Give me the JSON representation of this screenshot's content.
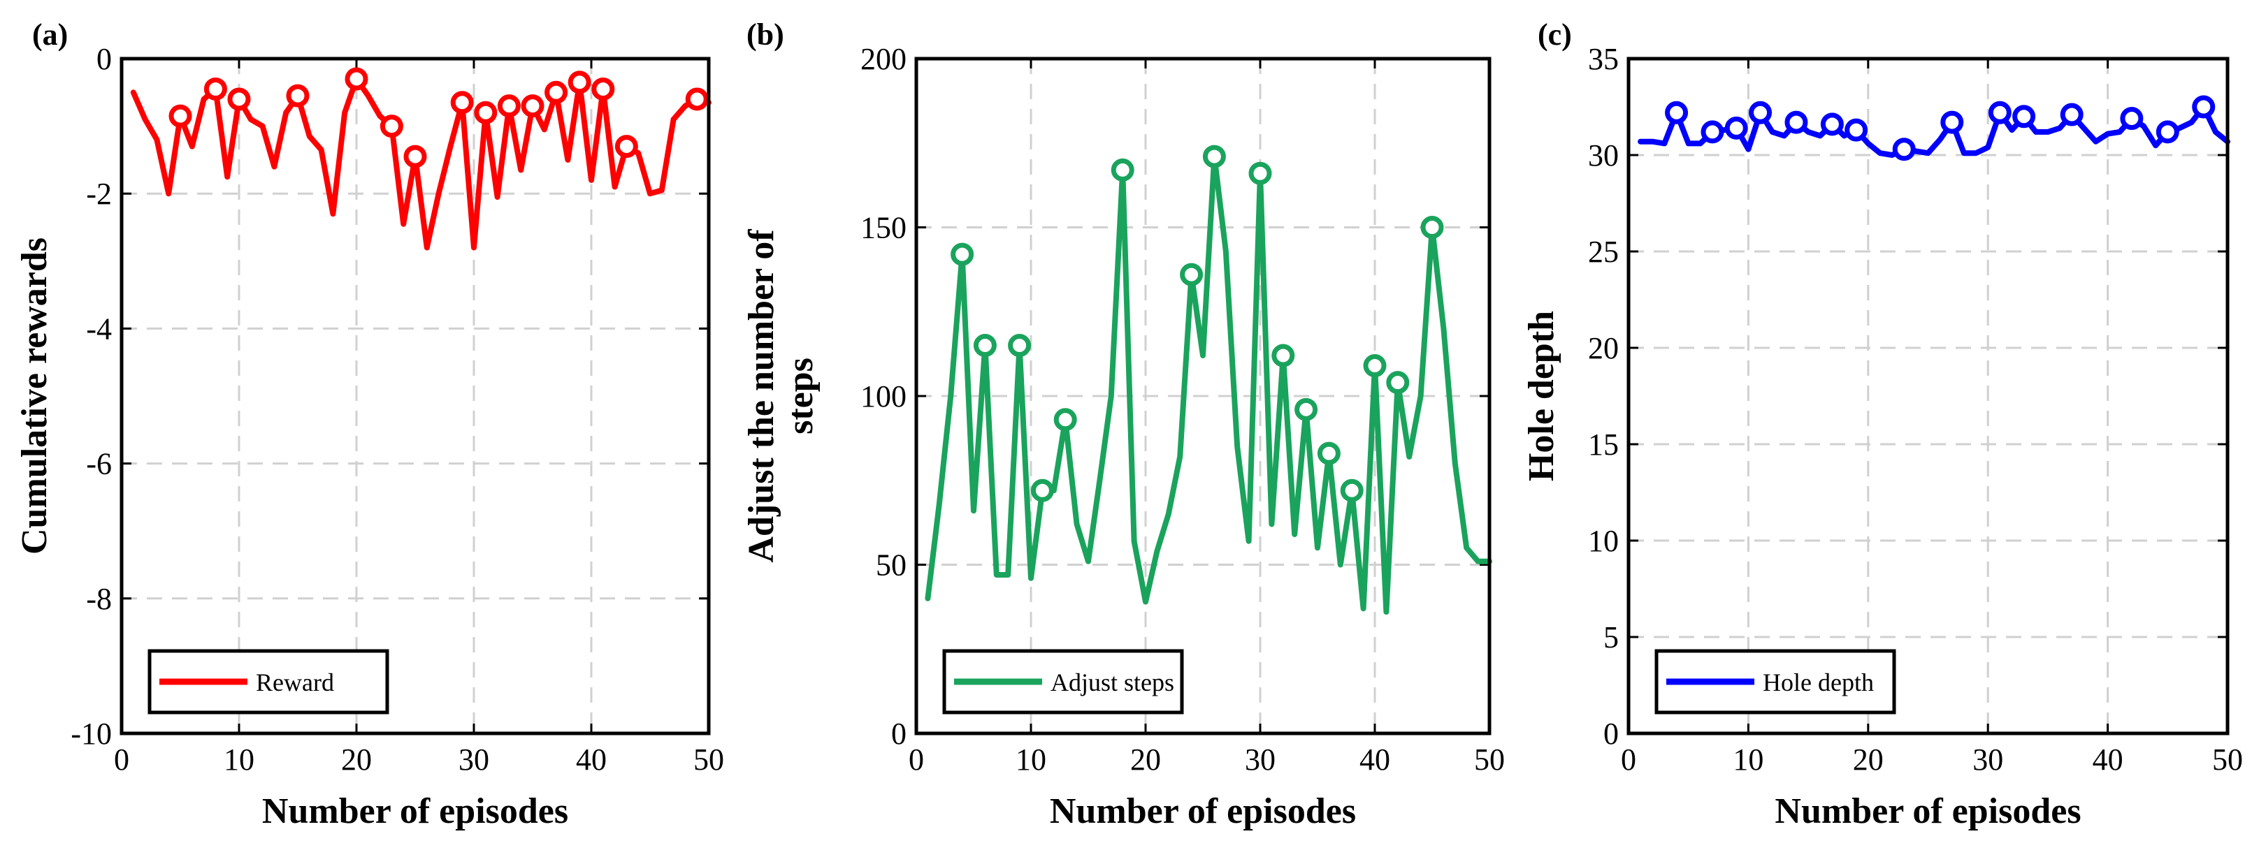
{
  "chart_data": [
    {
      "type": "line",
      "panel_label": "(a)",
      "title": "",
      "xlabel": "Number of episodes",
      "ylabel": "Cumulative rewards",
      "xlim": [
        0,
        50
      ],
      "ylim": [
        -10,
        0
      ],
      "xticks": [
        0,
        10,
        20,
        30,
        40,
        50
      ],
      "yticks": [
        -10,
        -8,
        -6,
        -4,
        -2,
        0
      ],
      "grid": true,
      "legend_position": "bottom-left",
      "series": [
        {
          "name": "Reward",
          "color": "#ff0000",
          "x": [
            1,
            2,
            3,
            4,
            5,
            6,
            7,
            8,
            9,
            10,
            11,
            12,
            13,
            14,
            15,
            16,
            17,
            18,
            19,
            20,
            21,
            22,
            23,
            24,
            25,
            26,
            27,
            28,
            29,
            30,
            31,
            32,
            33,
            34,
            35,
            36,
            37,
            38,
            39,
            40,
            41,
            42,
            43,
            44,
            45,
            46,
            47,
            48,
            49,
            50
          ],
          "y": [
            -0.5,
            -0.9,
            -1.2,
            -2.0,
            -0.85,
            -1.3,
            -0.6,
            -0.45,
            -1.75,
            -0.6,
            -0.9,
            -1.0,
            -1.6,
            -0.8,
            -0.55,
            -1.15,
            -1.35,
            -2.3,
            -0.8,
            -0.3,
            -0.55,
            -0.85,
            -1.0,
            -2.45,
            -1.45,
            -2.8,
            -2.0,
            -1.3,
            -0.65,
            -2.8,
            -0.8,
            -2.05,
            -0.7,
            -1.65,
            -0.7,
            -1.05,
            -0.5,
            -1.5,
            -0.35,
            -1.8,
            -0.45,
            -1.9,
            -1.3,
            -1.4,
            -2.0,
            -1.95,
            -0.9,
            -0.7,
            -0.6,
            -0.65
          ],
          "markers_at": [
            5,
            8,
            10,
            15,
            20,
            23,
            25,
            29,
            31,
            33,
            35,
            37,
            39,
            41,
            43,
            49
          ]
        }
      ]
    },
    {
      "type": "line",
      "panel_label": "(b)",
      "title": "",
      "xlabel": "Number of episodes",
      "ylabel": "Adjust the number of steps",
      "xlim": [
        0,
        50
      ],
      "ylim": [
        0,
        200
      ],
      "xticks": [
        0,
        10,
        20,
        30,
        40,
        50
      ],
      "yticks": [
        0,
        50,
        100,
        150,
        200
      ],
      "grid": true,
      "legend_position": "bottom-left",
      "series": [
        {
          "name": "Adjust steps",
          "color": "#1aa35c",
          "x": [
            1,
            2,
            3,
            4,
            5,
            6,
            7,
            8,
            9,
            10,
            11,
            12,
            13,
            14,
            15,
            16,
            17,
            18,
            19,
            20,
            21,
            22,
            23,
            24,
            25,
            26,
            27,
            28,
            29,
            30,
            31,
            32,
            33,
            34,
            35,
            36,
            37,
            38,
            39,
            40,
            41,
            42,
            43,
            44,
            45,
            46,
            47,
            48,
            49,
            50
          ],
          "y": [
            40,
            68,
            100,
            142,
            66,
            115,
            47,
            47,
            115,
            46,
            72,
            72,
            93,
            62,
            51,
            75,
            100,
            167,
            57,
            39,
            54,
            65,
            82,
            136,
            112,
            171,
            143,
            85,
            57,
            166,
            62,
            112,
            59,
            96,
            55,
            83,
            50,
            72,
            37,
            109,
            36,
            104,
            82,
            100,
            150,
            120,
            80,
            55,
            51,
            51
          ],
          "markers_at": [
            4,
            6,
            9,
            11,
            13,
            18,
            24,
            26,
            30,
            32,
            34,
            36,
            38,
            40,
            42,
            45
          ]
        }
      ]
    },
    {
      "type": "line",
      "panel_label": "(c)",
      "title": "",
      "xlabel": "Number of episodes",
      "ylabel": "Hole depth",
      "xlim": [
        0,
        50
      ],
      "ylim": [
        0,
        35
      ],
      "xticks": [
        0,
        10,
        20,
        30,
        40,
        50
      ],
      "yticks": [
        0,
        5,
        10,
        15,
        20,
        25,
        30,
        35
      ],
      "grid": true,
      "legend_position": "bottom-left",
      "series": [
        {
          "name": "Hole depth",
          "color": "#0000ff",
          "x": [
            1,
            2,
            3,
            4,
            5,
            6,
            7,
            8,
            9,
            10,
            11,
            12,
            13,
            14,
            15,
            16,
            17,
            18,
            19,
            20,
            21,
            22,
            23,
            24,
            25,
            26,
            27,
            28,
            29,
            30,
            31,
            32,
            33,
            34,
            35,
            36,
            37,
            38,
            39,
            40,
            41,
            42,
            43,
            44,
            45,
            46,
            47,
            48,
            49,
            50
          ],
          "y": [
            30.7,
            30.7,
            30.6,
            32.2,
            30.6,
            30.6,
            31.2,
            31.3,
            31.4,
            30.3,
            32.2,
            31.2,
            31.0,
            31.7,
            31.2,
            31.0,
            31.6,
            31.0,
            31.3,
            30.6,
            30.1,
            30.0,
            30.3,
            30.2,
            30.1,
            30.8,
            31.7,
            30.1,
            30.1,
            30.4,
            32.2,
            31.3,
            32.0,
            31.2,
            31.2,
            31.4,
            32.1,
            31.4,
            30.7,
            31.1,
            31.2,
            31.9,
            31.5,
            30.5,
            31.2,
            31.4,
            31.7,
            32.5,
            31.2,
            30.7
          ],
          "markers_at": [
            4,
            7,
            9,
            11,
            14,
            17,
            19,
            23,
            27,
            31,
            33,
            37,
            42,
            45,
            48
          ]
        }
      ]
    }
  ]
}
